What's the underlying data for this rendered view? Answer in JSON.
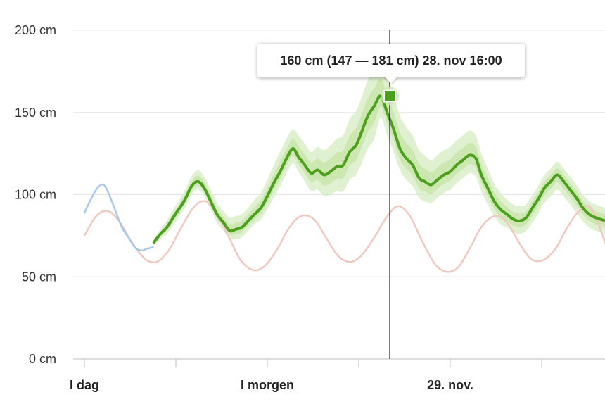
{
  "chart_data": {
    "type": "line",
    "title": "",
    "xlabel": "",
    "ylabel": "",
    "unit": "cm",
    "ylim": [
      0,
      200
    ],
    "xlim_hours": [
      0,
      57
    ],
    "grid": true,
    "y_ticks": [
      0,
      50,
      100,
      150,
      200
    ],
    "y_tick_labels": [
      "0 cm",
      "50 cm",
      "100 cm",
      "150 cm",
      "200 cm"
    ],
    "x_tick_labels": [
      {
        "hours": 0,
        "label": "I dag"
      },
      {
        "hours": 20,
        "label": "I morgen"
      },
      {
        "hours": 40,
        "label": "29. nov."
      }
    ],
    "x_minor_tick_hours": [
      10,
      30,
      50
    ],
    "series": [
      {
        "role": "observed",
        "color": "#a9c9ea",
        "x": [
          0,
          0.7,
          1.4,
          2.1,
          2.7,
          3.4,
          4.1,
          4.8,
          5.5,
          6.2,
          6.8,
          7.5
        ],
        "y": [
          89,
          97,
          104,
          106,
          100,
          90,
          80,
          74,
          68,
          66,
          67,
          68
        ]
      },
      {
        "role": "tide",
        "color": "#efc9c0",
        "x": [
          0,
          1.3,
          2.6,
          3.9,
          5.2,
          6.6,
          7.9,
          9.2,
          10.5,
          11.9,
          13.2,
          14.5,
          15.8,
          17.1,
          18.5,
          19.8,
          21.1,
          22.4,
          23.7,
          25.1,
          26.4,
          27.7,
          29.0,
          30.3,
          31.7,
          33.0,
          34.3,
          35.6,
          36.9,
          38.3,
          39.6,
          40.9,
          42.2,
          43.5,
          44.9,
          46.2,
          47.5,
          48.8,
          50.1,
          51.5,
          52.8,
          54.1,
          55.4,
          57.0
        ],
        "y": [
          75,
          87,
          90,
          83,
          71,
          61,
          59,
          66,
          79,
          92,
          96,
          88,
          74,
          60,
          54,
          57,
          67,
          80,
          87,
          85,
          74,
          63,
          59,
          63,
          74,
          86,
          93,
          87,
          72,
          58,
          53,
          56,
          68,
          81,
          87,
          83,
          71,
          61,
          60,
          67,
          80,
          90,
          92,
          70
        ]
      },
      {
        "role": "forecast",
        "color": "#4da01d",
        "x": [
          7.6,
          8.3,
          9.0,
          9.7,
          10.3,
          11.0,
          11.7,
          12.4,
          13.1,
          13.8,
          14.5,
          15.2,
          15.9,
          16.6,
          17.2,
          17.9,
          18.6,
          19.3,
          20.0,
          20.7,
          21.4,
          22.1,
          22.8,
          23.4,
          24.1,
          24.8,
          25.5,
          26.2,
          26.9,
          27.6,
          28.3,
          29.0,
          29.7,
          30.3,
          31.0,
          31.7,
          32.4,
          33.1,
          33.8,
          34.5,
          35.2,
          35.9,
          36.6,
          37.2,
          37.9,
          38.6,
          39.3,
          40.0,
          40.7,
          41.4,
          42.1,
          42.8,
          43.4,
          44.1,
          44.8,
          45.5,
          46.2,
          46.9,
          47.6,
          48.3,
          49.0,
          49.7,
          50.3,
          51.0,
          51.7,
          52.4,
          53.1,
          53.8,
          54.5,
          55.2,
          55.9,
          57.0
        ],
        "y": [
          71,
          76,
          80,
          86,
          91,
          97,
          105,
          108,
          104,
          96,
          88,
          83,
          78,
          79,
          80,
          84,
          88,
          92,
          99,
          107,
          114,
          122,
          128,
          123,
          118,
          113,
          115,
          112,
          114,
          117,
          118,
          126,
          130,
          138,
          148,
          154,
          160,
          150,
          140,
          128,
          122,
          118,
          110,
          108,
          106,
          109,
          112,
          114,
          118,
          121,
          124,
          122,
          112,
          104,
          96,
          91,
          88,
          85,
          84,
          86,
          92,
          98,
          104,
          108,
          112,
          108,
          103,
          98,
          92,
          88,
          86,
          84
        ],
        "range": {
          "low": [
            69,
            73,
            76,
            81,
            86,
            92,
            100,
            103,
            99,
            91,
            83,
            78,
            73,
            73,
            74,
            78,
            82,
            85,
            91,
            98,
            105,
            113,
            119,
            114,
            108,
            102,
            103,
            99,
            100,
            102,
            102,
            109,
            112,
            119,
            128,
            134,
            147,
            136,
            126,
            115,
            109,
            105,
            98,
            96,
            95,
            98,
            101,
            103,
            107,
            110,
            113,
            111,
            102,
            94,
            87,
            82,
            80,
            77,
            76,
            78,
            83,
            89,
            95,
            99,
            103,
            99,
            94,
            89,
            84,
            80,
            78,
            76
          ],
          "high": [
            73,
            79,
            84,
            91,
            96,
            103,
            111,
            115,
            111,
            103,
            95,
            90,
            86,
            87,
            88,
            92,
            97,
            101,
            109,
            118,
            126,
            134,
            140,
            136,
            131,
            126,
            129,
            127,
            130,
            134,
            136,
            146,
            151,
            159,
            170,
            176,
            181,
            172,
            161,
            148,
            141,
            136,
            127,
            124,
            121,
            124,
            127,
            129,
            133,
            136,
            139,
            136,
            125,
            116,
            107,
            101,
            97,
            94,
            93,
            94,
            100,
            106,
            112,
            116,
            120,
            116,
            111,
            106,
            100,
            96,
            94,
            92
          ]
        }
      }
    ],
    "crosshair_hours": 33.4,
    "highlight_point": {
      "hours": 33.4,
      "value": 160
    },
    "tooltip": "160 cm (147 — 181 cm) 28. nov 16:00"
  }
}
